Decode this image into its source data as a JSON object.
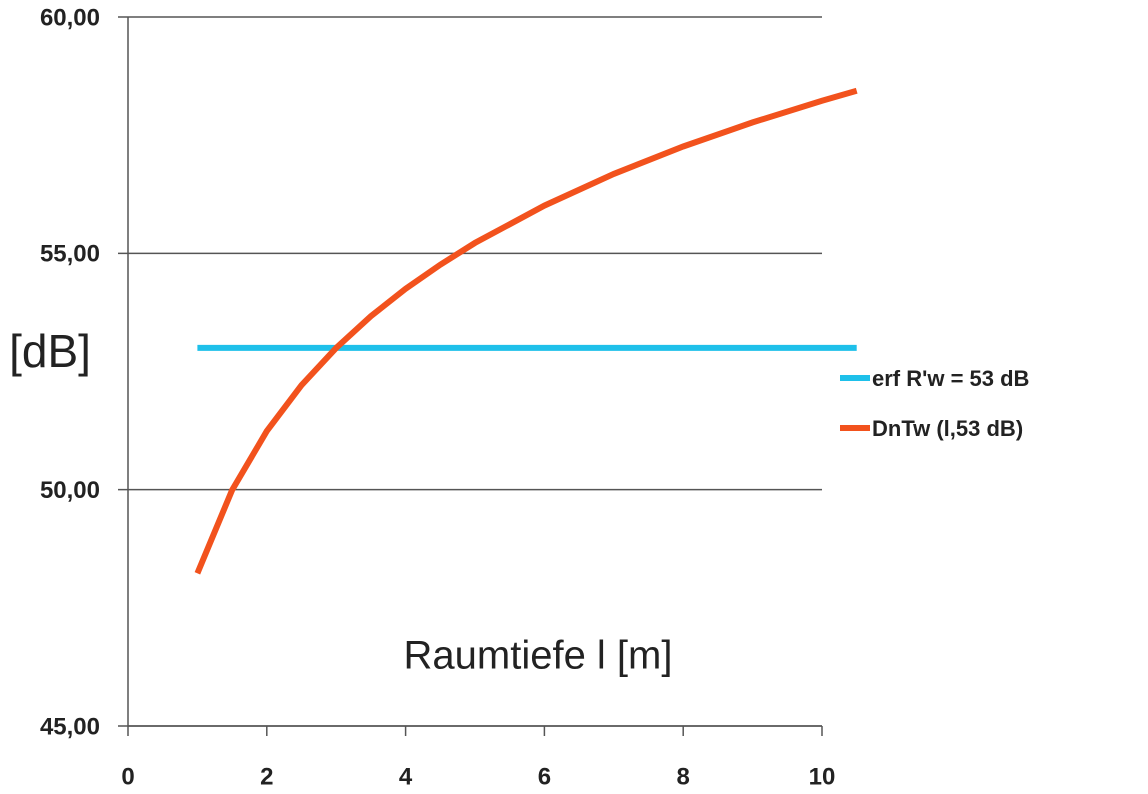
{
  "chart_data": {
    "type": "line",
    "ylabel": "[dB]",
    "xlabel": "Raumtiefe l [m]",
    "xlim": [
      0,
      10
    ],
    "ylim": [
      45,
      60
    ],
    "xticks": [
      0,
      2,
      4,
      6,
      8,
      10
    ],
    "yticks": [
      {
        "value": 45,
        "label": "45,00"
      },
      {
        "value": 50,
        "label": "50,00"
      },
      {
        "value": 55,
        "label": "55,00"
      },
      {
        "value": 60,
        "label": "60,00"
      }
    ],
    "grid": true,
    "legend": "right",
    "series": [
      {
        "name": "erf R'w = 53 dB",
        "color": "#1ec0ea",
        "x": [
          1,
          10.5
        ],
        "values": [
          53,
          53
        ]
      },
      {
        "name": "DnTw (l,53 dB)",
        "color": "#f2521d",
        "x": [
          1,
          1.5,
          2,
          2.5,
          3,
          3.5,
          4,
          4.5,
          5,
          6,
          7,
          8,
          9,
          10,
          10.5
        ],
        "values": [
          48.23,
          49.99,
          51.24,
          52.21,
          53.0,
          53.67,
          54.25,
          54.76,
          55.22,
          56.01,
          56.68,
          57.26,
          57.77,
          58.23,
          58.44
        ]
      }
    ]
  }
}
